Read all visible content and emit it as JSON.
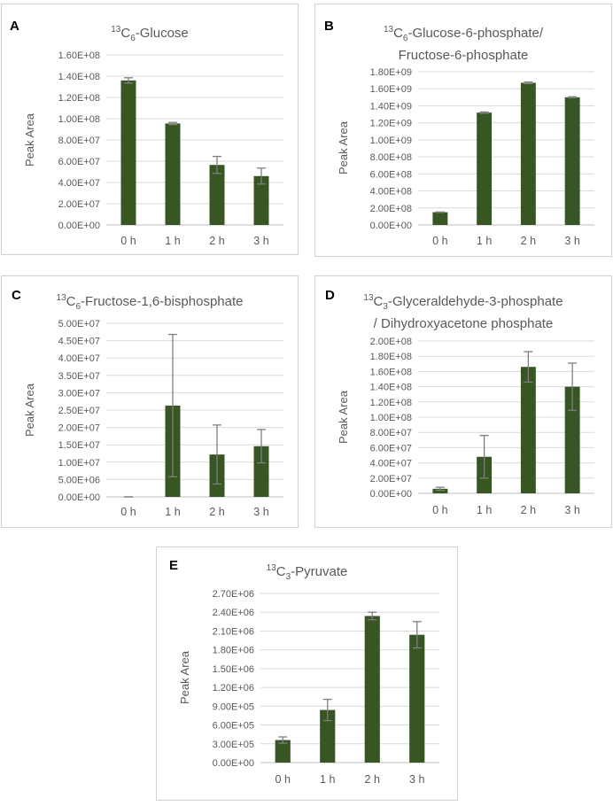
{
  "colors": {
    "bar": "#375623",
    "error": "#7f7f7f",
    "grid": "#d9d9d9",
    "text": "#595959"
  },
  "chart_data": [
    {
      "type": "bar",
      "letter": "A",
      "title_sup": "13",
      "title_main": "C",
      "title_sub": "6",
      "title_rest": "-Glucose",
      "title_line2": "",
      "ylabel": "Peak Area",
      "categories": [
        "0 h",
        "1 h",
        "2 h",
        "3 h"
      ],
      "values": [
        136000000,
        95500000,
        56500000,
        46000000
      ],
      "errors": [
        2500000,
        1000000,
        8000000,
        7500000
      ],
      "ylim": [
        0,
        160000000
      ],
      "ticks": [
        "0.00E+00",
        "2.00E+07",
        "4.00E+07",
        "6.00E+07",
        "8.00E+07",
        "1.00E+08",
        "1.20E+08",
        "1.40E+08",
        "1.60E+08"
      ]
    },
    {
      "type": "bar",
      "letter": "B",
      "title_sup": "13",
      "title_main": "C",
      "title_sub": "6",
      "title_rest": "-Glucose-6-phosphate/",
      "title_line2": "Fructose-6-phosphate",
      "ylabel": "Peak Area",
      "categories": [
        "0 h",
        "1 h",
        "2 h",
        "3 h"
      ],
      "values": [
        150000000,
        1320000000,
        1670000000,
        1500000000
      ],
      "errors": [
        3000000,
        8000000,
        10000000,
        6000000
      ],
      "ylim": [
        0,
        1800000000
      ],
      "ticks": [
        "0.00E+00",
        "2.00E+08",
        "4.00E+08",
        "6.00E+08",
        "8.00E+08",
        "1.00E+09",
        "1.20E+09",
        "1.40E+09",
        "1.60E+09",
        "1.80E+09"
      ]
    },
    {
      "type": "bar",
      "letter": "C",
      "title_sup": "13",
      "title_main": "C",
      "title_sub": "6",
      "title_rest": "-Fructose-1,6-bisphosphate",
      "title_line2": "",
      "ylabel": "Peak Area",
      "categories": [
        "0 h",
        "1 h",
        "2 h",
        "3 h"
      ],
      "values": [
        0,
        26300000,
        12200000,
        14600000
      ],
      "errors": [
        0,
        20500000,
        8500000,
        4800000
      ],
      "ylim": [
        0,
        50000000
      ],
      "ticks": [
        "0.00E+00",
        "5.00E+06",
        "1.00E+07",
        "1.50E+07",
        "2.00E+07",
        "2.50E+07",
        "3.00E+07",
        "3.50E+07",
        "4.00E+07",
        "4.50E+07",
        "5.00E+07"
      ]
    },
    {
      "type": "bar",
      "letter": "D",
      "title_sup": "13",
      "title_main": "C",
      "title_sub": "3",
      "title_rest": "-Glyceraldehyde-3-phosphate",
      "title_line2": "/ Dihydroxyacetone phosphate",
      "ylabel": "Peak Area",
      "categories": [
        "0 h",
        "1 h",
        "2 h",
        "3 h"
      ],
      "values": [
        6000000,
        48000000,
        166000000,
        140000000
      ],
      "errors": [
        2000000,
        28000000,
        20000000,
        31000000
      ],
      "ylim": [
        0,
        200000000
      ],
      "ticks": [
        "0.00E+00",
        "2.00E+07",
        "4.00E+07",
        "6.00E+07",
        "8.00E+07",
        "1.00E+08",
        "1.20E+08",
        "1.40E+08",
        "1.60E+08",
        "1.80E+08",
        "2.00E+08"
      ]
    },
    {
      "type": "bar",
      "letter": "E",
      "title_sup": "13",
      "title_main": "C",
      "title_sub": "3",
      "title_rest": "-Pyruvate",
      "title_line2": "",
      "ylabel": "Peak Area",
      "categories": [
        "0 h",
        "1 h",
        "2 h",
        "3 h"
      ],
      "values": [
        360000,
        840000,
        2340000,
        2040000
      ],
      "errors": [
        50000,
        170000,
        60000,
        210000
      ],
      "ylim": [
        0,
        2700000
      ],
      "ticks": [
        "0.00E+00",
        "3.00E+05",
        "6.00E+05",
        "9.00E+05",
        "1.20E+06",
        "1.50E+06",
        "1.80E+06",
        "2.10E+06",
        "2.40E+06",
        "2.70E+06"
      ]
    }
  ]
}
